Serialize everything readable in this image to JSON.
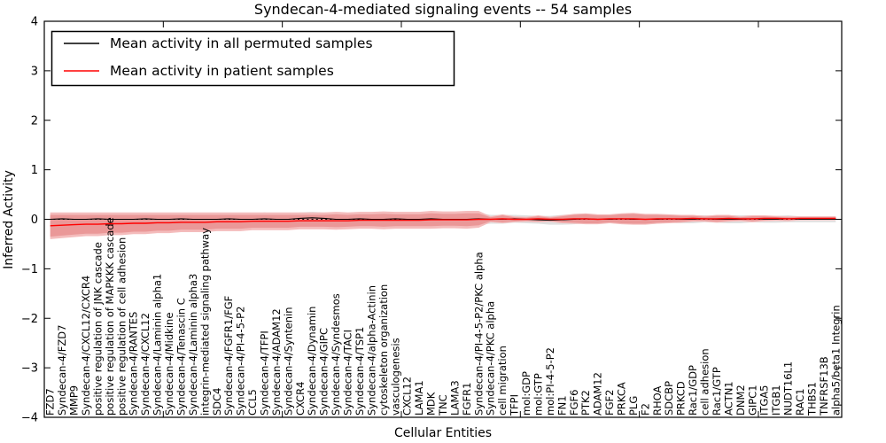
{
  "chart_data": {
    "type": "line",
    "title": "Syndecan-4-mediated signaling events -- 54 samples",
    "xlabel": "Cellular Entities",
    "ylabel": "Inferred Activity",
    "ylim": [
      -4,
      4
    ],
    "yticks": [
      4,
      3,
      2,
      1,
      0,
      -1,
      -2,
      -3,
      -4
    ],
    "xlim": [
      0,
      67
    ],
    "xticks": [
      0,
      10,
      20,
      30,
      40,
      50,
      60
    ],
    "grid": false,
    "legend_position": "upper left",
    "legend": [
      "Mean activity in all permuted samples",
      "Mean activity in patient samples"
    ],
    "colors": {
      "permuted_line": "#000000",
      "patient_line": "#ff0000",
      "zero_line": "#000000",
      "permuted_band": "#e0e0e0",
      "patient_band_outer": "#f4bcbc",
      "patient_band_inner": "#ea9898",
      "axis": "#000000"
    },
    "categories": [
      "FZD7",
      "Syndecan-4/FZD7",
      "MMP9",
      "Syndecan-4/CXCL12/CXCR4",
      "positive regulation of JNK cascade",
      "positive regulation of MAPKKK cascade",
      "positive regulation of cell adhesion",
      "Syndecan-4/RANTES",
      "Syndecan-4/CXCL12",
      "Syndecan-4/Laminin alpha1",
      "Syndecan-4/Midkine",
      "Syndecan-4/Tenascin C",
      "Syndecan-4/Laminin alpha3",
      "integrin-mediated signaling pathway",
      "SDC4",
      "Syndecan-4/FGFR1/FGF",
      "Syndecan-4/PI-4-5-P2",
      "CCL5",
      "Syndecan-4/TFPI",
      "Syndecan-4/ADAM12",
      "Syndecan-4/Syntenin",
      "CXCR4",
      "Syndecan-4/Dynamin",
      "Syndecan-4/GIPC",
      "Syndecan-4/Syndesmos",
      "Syndecan-4/TACI",
      "Syndecan-4/TSP1",
      "Syndecan-4/alpha-Actinin",
      "cytoskeleton organization",
      "vasculogenesis",
      "CXCL12",
      "LAMA1",
      "MDK",
      "TNC",
      "LAMA3",
      "FGFR1",
      "Syndecan-4/PI-4-5-P2/PKC alpha",
      "Syndecan-4/PKC alpha",
      "cell migration",
      "TFPI",
      "mol:GDP",
      "mol:GTP",
      "mol:PI-4-5-P2",
      "FN1",
      "FGF6",
      "PTK2",
      "ADAM12",
      "FGF2",
      "PRKCA",
      "PLG",
      "F2",
      "RHOA",
      "SDCBP",
      "PRKCD",
      "Rac1/GDP",
      "cell adhesion",
      "Rac1/GTP",
      "ACTN1",
      "DNM2",
      "GIPC1",
      "ITGA5",
      "ITGB1",
      "NUDT16L1",
      "RAC1",
      "THBS1",
      "TNFRSF13B",
      "alpha5/beta1 Integrin"
    ],
    "series": [
      {
        "name": "Mean activity in all permuted samples",
        "color": "#000000",
        "values": [
          0.0,
          0.01,
          0.0,
          0.0,
          0.01,
          0.0,
          0.0,
          0.0,
          0.01,
          0.0,
          0.0,
          0.01,
          0.0,
          0.0,
          0.0,
          0.01,
          0.0,
          0.0,
          0.01,
          0.0,
          0.0,
          0.02,
          0.03,
          0.02,
          0.0,
          0.0,
          0.01,
          0.0,
          0.0,
          0.01,
          0.0,
          0.0,
          0.01,
          0.0,
          0.0,
          0.0,
          0.01,
          0.0,
          0.0,
          0.01,
          0.0,
          -0.01,
          -0.02,
          -0.01,
          0.0,
          0.01,
          0.0,
          0.0,
          0.01,
          0.0,
          0.0,
          0.0,
          0.01,
          0.0,
          0.0,
          0.01,
          0.0,
          0.0,
          0.0,
          0.01,
          0.0,
          0.0,
          0.01,
          0.0,
          0.0,
          0.0,
          0.0
        ]
      },
      {
        "name": "Mean activity in patient samples",
        "color": "#ff0000",
        "values": [
          -0.13,
          -0.12,
          -0.11,
          -0.1,
          -0.1,
          -0.09,
          -0.09,
          -0.08,
          -0.08,
          -0.07,
          -0.07,
          -0.06,
          -0.06,
          -0.06,
          -0.05,
          -0.05,
          -0.05,
          -0.04,
          -0.04,
          -0.04,
          -0.04,
          -0.03,
          -0.03,
          -0.03,
          -0.03,
          -0.03,
          -0.02,
          -0.02,
          -0.02,
          -0.02,
          -0.02,
          -0.02,
          -0.01,
          -0.01,
          -0.01,
          -0.01,
          0.0,
          0.0,
          0.01,
          0.0,
          0.0,
          0.01,
          0.0,
          0.0,
          0.01,
          0.01,
          0.0,
          0.01,
          0.01,
          0.01,
          0.0,
          0.01,
          0.01,
          0.01,
          0.02,
          0.01,
          0.01,
          0.02,
          0.01,
          0.01,
          0.02,
          0.02,
          0.01,
          0.02,
          0.02,
          0.02,
          0.02
        ]
      }
    ],
    "bands": [
      {
        "name": "permuted-range",
        "center_series": 0,
        "color": "#e0e0e0",
        "halfwidths": [
          0.1,
          0.1,
          0.11,
          0.11,
          0.11,
          0.12,
          0.12,
          0.12,
          0.12,
          0.12,
          0.12,
          0.12,
          0.13,
          0.12,
          0.12,
          0.12,
          0.12,
          0.12,
          0.13,
          0.12,
          0.12,
          0.12,
          0.12,
          0.12,
          0.13,
          0.12,
          0.12,
          0.12,
          0.12,
          0.13,
          0.12,
          0.12,
          0.12,
          0.12,
          0.13,
          0.12,
          0.12,
          0.09,
          0.09,
          0.08,
          0.08,
          0.08,
          0.09,
          0.1,
          0.1,
          0.09,
          0.08,
          0.08,
          0.09,
          0.1,
          0.1,
          0.09,
          0.08,
          0.08,
          0.08,
          0.07,
          0.07,
          0.08,
          0.08,
          0.07,
          0.07,
          0.07,
          0.07,
          0.06,
          0.06,
          0.06,
          0.06
        ]
      },
      {
        "name": "patient-range-outer",
        "center_series": 1,
        "color": "#f4bcbc",
        "halfwidths": [
          0.27,
          0.26,
          0.25,
          0.24,
          0.24,
          0.23,
          0.23,
          0.22,
          0.22,
          0.21,
          0.21,
          0.2,
          0.2,
          0.2,
          0.19,
          0.19,
          0.19,
          0.18,
          0.18,
          0.18,
          0.18,
          0.17,
          0.17,
          0.17,
          0.18,
          0.17,
          0.17,
          0.17,
          0.18,
          0.17,
          0.17,
          0.17,
          0.18,
          0.17,
          0.17,
          0.18,
          0.17,
          0.06,
          0.09,
          0.06,
          0.05,
          0.07,
          0.05,
          0.08,
          0.1,
          0.11,
          0.1,
          0.09,
          0.11,
          0.12,
          0.11,
          0.1,
          0.09,
          0.08,
          0.07,
          0.06,
          0.08,
          0.07,
          0.05,
          0.07,
          0.06,
          0.05,
          0.05,
          0.04,
          0.04,
          0.04,
          0.04
        ]
      },
      {
        "name": "patient-range-inner",
        "center_series": 1,
        "color": "#ea9898",
        "halfwidths": [
          0.22,
          0.21,
          0.2,
          0.19,
          0.19,
          0.18,
          0.18,
          0.17,
          0.17,
          0.16,
          0.16,
          0.15,
          0.15,
          0.15,
          0.14,
          0.14,
          0.14,
          0.13,
          0.13,
          0.13,
          0.13,
          0.12,
          0.12,
          0.12,
          0.13,
          0.12,
          0.12,
          0.12,
          0.13,
          0.12,
          0.12,
          0.12,
          0.13,
          0.12,
          0.12,
          0.13,
          0.12,
          0.04,
          0.07,
          0.04,
          0.03,
          0.05,
          0.03,
          0.06,
          0.08,
          0.09,
          0.08,
          0.07,
          0.09,
          0.1,
          0.09,
          0.08,
          0.07,
          0.06,
          0.05,
          0.04,
          0.06,
          0.05,
          0.03,
          0.05,
          0.04,
          0.03,
          0.03,
          0.02,
          0.02,
          0.02,
          0.02
        ]
      }
    ],
    "zero_line": {
      "y": 0,
      "style": "dotted"
    }
  }
}
